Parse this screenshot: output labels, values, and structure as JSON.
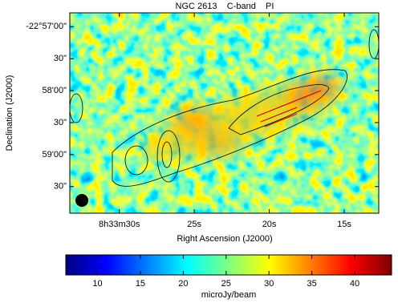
{
  "chart_data": {
    "type": "image",
    "title": "NGC 2613    C-band    PI",
    "x_label": "Right Ascension (J2000)",
    "y_label": "Declination (J2000)",
    "xlim": [
      33.3,
      12.7
    ],
    "xticks": [
      {
        "value": 30,
        "label": "8h33m30s"
      },
      {
        "value": 25,
        "label": "25s"
      },
      {
        "value": 20,
        "label": "20s"
      },
      {
        "value": 15,
        "label": "15s"
      }
    ],
    "ylim": [
      -175,
      13
    ],
    "yticks": [
      {
        "value": 0,
        "label": "-22°57'00\""
      },
      {
        "value": -30,
        "label": "30\""
      },
      {
        "value": -60,
        "label": "58'00\""
      },
      {
        "value": -90,
        "label": "30\""
      },
      {
        "value": -120,
        "label": "59'00\""
      },
      {
        "value": -150,
        "label": "30\""
      }
    ],
    "colorbar": {
      "label": "microJy/beam",
      "lim": [
        6.3,
        44.3
      ],
      "ticks": [
        10,
        15,
        20,
        25,
        30,
        35,
        40
      ],
      "colormap": "jet"
    }
  }
}
